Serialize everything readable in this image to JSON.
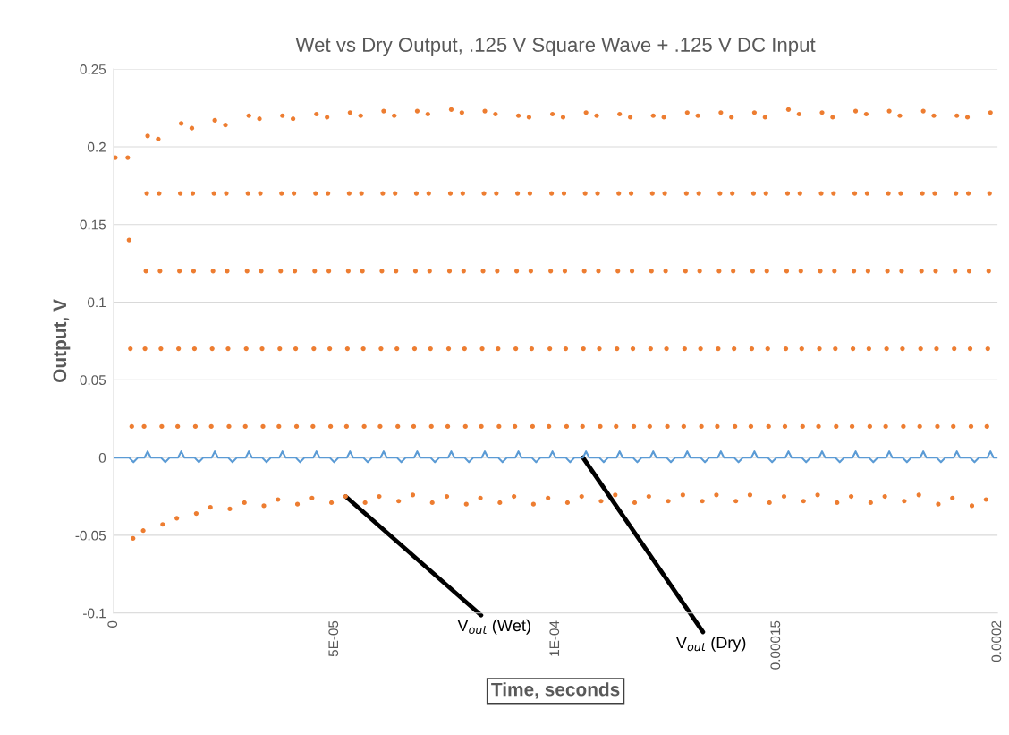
{
  "chart_data": {
    "type": "scatter",
    "title": "Wet vs Dry Output, .125 V Square Wave + .125 V DC Input",
    "xlabel": "Time, seconds",
    "ylabel": "Output, V",
    "xlim": [
      0,
      0.0002
    ],
    "ylim": [
      -0.1,
      0.25
    ],
    "xticks": [
      0,
      {
        "value": 5e-05,
        "label": "5E-05"
      },
      {
        "value": 0.0001,
        "label": "1E-04"
      },
      0.00015,
      0.0002
    ],
    "yticks": [
      -0.1,
      -0.05,
      0,
      0.05,
      0.1,
      0.15,
      0.2,
      0.25
    ],
    "grid": "y",
    "legend": false,
    "series": [
      {
        "marker": "circle",
        "color": "#ed7d31",
        "x": [
          4e-07,
          3.2e-06,
          3.5e-06,
          3.8e-06,
          4.1e-06,
          4.4e-06,
          6.7e-06,
          6.9e-06,
          7.1e-06,
          7.3e-06,
          7.5e-06,
          7.7e-06,
          1.01e-05,
          1.03e-05,
          1.05e-05,
          1.07e-05,
          1.09e-05,
          1.11e-05,
          1.43e-05,
          1.45e-05,
          1.47e-05,
          1.49e-05,
          1.51e-05,
          1.53e-05,
          1.77e-05,
          1.79e-05,
          1.81e-05,
          1.83e-05,
          1.85e-05,
          1.87e-05,
          2.19e-05,
          2.21e-05,
          2.23e-05,
          2.25e-05,
          2.27e-05,
          2.29e-05,
          2.53e-05,
          2.55e-05,
          2.57e-05,
          2.59e-05,
          2.61e-05,
          2.63e-05,
          2.96e-05,
          2.98e-05,
          3e-05,
          3.02e-05,
          3.04e-05,
          3.06e-05,
          3.3e-05,
          3.32e-05,
          3.34e-05,
          3.36e-05,
          3.38e-05,
          3.4e-05,
          3.72e-05,
          3.74e-05,
          3.76e-05,
          3.78e-05,
          3.8e-05,
          3.82e-05,
          4.06e-05,
          4.08e-05,
          4.1e-05,
          4.12e-05,
          4.14e-05,
          4.16e-05,
          4.49e-05,
          4.51e-05,
          4.53e-05,
          4.55e-05,
          4.57e-05,
          4.59e-05,
          4.83e-05,
          4.85e-05,
          4.87e-05,
          4.89e-05,
          4.91e-05,
          4.93e-05,
          5.25e-05,
          5.27e-05,
          5.29e-05,
          5.31e-05,
          5.33e-05,
          5.35e-05,
          5.59e-05,
          5.61e-05,
          5.63e-05,
          5.65e-05,
          5.67e-05,
          5.69e-05,
          6.01e-05,
          6.03e-05,
          6.05e-05,
          6.07e-05,
          6.09e-05,
          6.11e-05,
          6.35e-05,
          6.37e-05,
          6.39e-05,
          6.41e-05,
          6.43e-05,
          6.45e-05,
          6.77e-05,
          6.79e-05,
          6.81e-05,
          6.83e-05,
          6.85e-05,
          6.87e-05,
          7.11e-05,
          7.13e-05,
          7.15e-05,
          7.17e-05,
          7.19e-05,
          7.21e-05,
          7.54e-05,
          7.56e-05,
          7.58e-05,
          7.6e-05,
          7.62e-05,
          7.64e-05,
          7.88e-05,
          7.9e-05,
          7.92e-05,
          7.94e-05,
          7.96e-05,
          7.98e-05,
          8.3e-05,
          8.32e-05,
          8.34e-05,
          8.36e-05,
          8.38e-05,
          8.4e-05,
          8.64e-05,
          8.66e-05,
          8.68e-05,
          8.7e-05,
          8.72e-05,
          8.74e-05,
          9.06e-05,
          9.08e-05,
          9.1e-05,
          9.12e-05,
          9.14e-05,
          9.16e-05,
          9.4e-05,
          9.42e-05,
          9.44e-05,
          9.46e-05,
          9.48e-05,
          9.5e-05,
          9.83e-05,
          9.85e-05,
          9.87e-05,
          9.89e-05,
          9.91e-05,
          9.93e-05,
          0.0001017,
          0.0001019,
          0.0001021,
          0.0001023,
          0.0001025,
          0.0001027,
          0.0001059,
          0.0001061,
          0.0001063,
          0.0001065,
          0.0001067,
          0.0001069,
          0.0001093,
          0.0001095,
          0.0001097,
          0.0001099,
          0.0001101,
          0.0001103,
          0.0001135,
          0.0001137,
          0.0001139,
          0.0001141,
          0.0001143,
          0.0001145,
          0.0001169,
          0.0001171,
          0.0001173,
          0.0001175,
          0.0001177,
          0.0001179,
          0.0001211,
          0.0001213,
          0.0001215,
          0.0001217,
          0.0001219,
          0.0001221,
          0.0001245,
          0.0001247,
          0.0001249,
          0.0001251,
          0.0001253,
          0.0001255,
          0.0001288,
          0.000129,
          0.0001292,
          0.0001294,
          0.0001296,
          0.0001298,
          0.0001322,
          0.0001324,
          0.0001326,
          0.0001328,
          0.000133,
          0.0001332,
          0.0001364,
          0.0001366,
          0.0001368,
          0.000137,
          0.0001372,
          0.0001374,
          0.0001398,
          0.00014,
          0.0001402,
          0.0001404,
          0.0001406,
          0.0001408,
          0.000144,
          0.0001442,
          0.0001444,
          0.0001446,
          0.0001448,
          0.000145,
          0.0001474,
          0.0001476,
          0.0001478,
          0.000148,
          0.0001482,
          0.0001484,
          0.0001517,
          0.0001519,
          0.0001521,
          0.0001523,
          0.0001525,
          0.0001527,
          0.0001551,
          0.0001553,
          0.0001555,
          0.0001557,
          0.0001559,
          0.0001561,
          0.0001593,
          0.0001595,
          0.0001597,
          0.0001599,
          0.0001601,
          0.0001603,
          0.0001627,
          0.0001629,
          0.0001631,
          0.0001633,
          0.0001635,
          0.0001637,
          0.0001669,
          0.0001671,
          0.0001673,
          0.0001675,
          0.0001677,
          0.0001679,
          0.0001703,
          0.0001705,
          0.0001707,
          0.0001709,
          0.0001711,
          0.0001713,
          0.0001745,
          0.0001747,
          0.0001749,
          0.0001751,
          0.0001753,
          0.0001755,
          0.0001779,
          0.0001781,
          0.0001783,
          0.0001785,
          0.0001787,
          0.0001789,
          0.0001822,
          0.0001824,
          0.0001826,
          0.0001828,
          0.000183,
          0.0001832,
          0.0001856,
          0.0001858,
          0.000186,
          0.0001862,
          0.0001864,
          0.0001866,
          0.0001898,
          0.00019,
          0.0001902,
          0.0001904,
          0.0001906,
          0.0001908,
          0.0001932,
          0.0001934,
          0.0001936,
          0.0001938,
          0.000194,
          0.0001942,
          0.0001974,
          0.0001976,
          0.0001978,
          0.000198,
          0.0001982,
          0.0001984
        ],
        "values": [
          0.193,
          0.193,
          0.14,
          0.07,
          0.02,
          -0.052,
          -0.047,
          0.02,
          0.07,
          0.12,
          0.17,
          0.207,
          0.205,
          0.17,
          0.12,
          0.07,
          0.02,
          -0.043,
          -0.039,
          0.02,
          0.07,
          0.12,
          0.17,
          0.215,
          0.212,
          0.17,
          0.12,
          0.07,
          0.02,
          -0.036,
          -0.032,
          0.02,
          0.07,
          0.12,
          0.17,
          0.217,
          0.214,
          0.17,
          0.12,
          0.07,
          0.02,
          -0.033,
          -0.029,
          0.02,
          0.07,
          0.12,
          0.17,
          0.22,
          0.218,
          0.17,
          0.12,
          0.07,
          0.02,
          -0.031,
          -0.027,
          0.02,
          0.07,
          0.12,
          0.17,
          0.22,
          0.218,
          0.17,
          0.12,
          0.07,
          0.02,
          -0.03,
          -0.026,
          0.02,
          0.07,
          0.12,
          0.17,
          0.221,
          0.219,
          0.17,
          0.12,
          0.07,
          0.02,
          -0.029,
          -0.025,
          0.02,
          0.07,
          0.12,
          0.17,
          0.222,
          0.22,
          0.17,
          0.12,
          0.07,
          0.02,
          -0.029,
          -0.025,
          0.02,
          0.07,
          0.12,
          0.17,
          0.223,
          0.22,
          0.17,
          0.12,
          0.07,
          0.02,
          -0.028,
          -0.024,
          0.02,
          0.07,
          0.12,
          0.17,
          0.223,
          0.221,
          0.17,
          0.12,
          0.07,
          0.02,
          -0.029,
          -0.025,
          0.02,
          0.07,
          0.12,
          0.17,
          0.224,
          0.222,
          0.17,
          0.12,
          0.07,
          0.02,
          -0.03,
          -0.026,
          0.02,
          0.07,
          0.12,
          0.17,
          0.223,
          0.221,
          0.17,
          0.12,
          0.07,
          0.02,
          -0.029,
          -0.025,
          0.02,
          0.07,
          0.12,
          0.17,
          0.22,
          0.219,
          0.17,
          0.12,
          0.07,
          0.02,
          -0.03,
          -0.026,
          0.02,
          0.07,
          0.12,
          0.17,
          0.221,
          0.219,
          0.17,
          0.12,
          0.07,
          0.02,
          -0.029,
          -0.025,
          0.02,
          0.07,
          0.12,
          0.17,
          0.222,
          0.22,
          0.17,
          0.12,
          0.07,
          0.02,
          -0.028,
          -0.024,
          0.02,
          0.07,
          0.12,
          0.17,
          0.221,
          0.219,
          0.17,
          0.12,
          0.07,
          0.02,
          -0.029,
          -0.025,
          0.02,
          0.07,
          0.12,
          0.17,
          0.22,
          0.219,
          0.17,
          0.12,
          0.07,
          0.02,
          -0.028,
          -0.024,
          0.02,
          0.07,
          0.12,
          0.17,
          0.222,
          0.22,
          0.17,
          0.12,
          0.07,
          0.02,
          -0.028,
          -0.024,
          0.02,
          0.07,
          0.12,
          0.17,
          0.222,
          0.219,
          0.17,
          0.12,
          0.07,
          0.02,
          -0.028,
          -0.024,
          0.02,
          0.07,
          0.12,
          0.17,
          0.222,
          0.219,
          0.17,
          0.12,
          0.07,
          0.02,
          -0.029,
          -0.025,
          0.02,
          0.07,
          0.12,
          0.17,
          0.224,
          0.221,
          0.17,
          0.12,
          0.07,
          0.02,
          -0.028,
          -0.024,
          0.02,
          0.07,
          0.12,
          0.17,
          0.222,
          0.219,
          0.17,
          0.12,
          0.07,
          0.02,
          -0.029,
          -0.025,
          0.02,
          0.07,
          0.12,
          0.17,
          0.223,
          0.221,
          0.17,
          0.12,
          0.07,
          0.02,
          -0.029,
          -0.025,
          0.02,
          0.07,
          0.12,
          0.17,
          0.223,
          0.22,
          0.17,
          0.12,
          0.07,
          0.02,
          -0.028,
          -0.024,
          0.02,
          0.07,
          0.12,
          0.17,
          0.223,
          0.22,
          0.17,
          0.12,
          0.07,
          0.02,
          -0.03,
          -0.026,
          0.02,
          0.07,
          0.12,
          0.17,
          0.22,
          0.219,
          0.17,
          0.12,
          0.07,
          0.02,
          -0.031,
          -0.027,
          0.02,
          0.07,
          0.12,
          0.17,
          0.222
        ]
      },
      {
        "type": "line",
        "marker": "none",
        "line_style": "solid",
        "color": "#5b9bd5",
        "x": [
          0,
          3.5e-06,
          4.5e-06,
          5.5e-06,
          7e-06,
          7.7e-06,
          8.4e-06,
          1.07e-05,
          1.17e-05,
          1.27e-05,
          1.46e-05,
          1.53e-05,
          1.6e-05,
          1.83e-05,
          1.93e-05,
          2.03e-05,
          2.22e-05,
          2.29e-05,
          2.36e-05,
          2.59e-05,
          2.69e-05,
          2.79e-05,
          2.99e-05,
          3.06e-05,
          3.13e-05,
          3.36e-05,
          3.46e-05,
          3.56e-05,
          3.75e-05,
          3.82e-05,
          3.89e-05,
          4.12e-05,
          4.22e-05,
          4.32e-05,
          4.52e-05,
          4.59e-05,
          4.66e-05,
          4.89e-05,
          4.99e-05,
          5.09e-05,
          5.28e-05,
          5.35e-05,
          5.42e-05,
          5.65e-05,
          5.75e-05,
          5.85e-05,
          6.04e-05,
          6.11e-05,
          6.18e-05,
          6.41e-05,
          6.51e-05,
          6.61e-05,
          6.8e-05,
          6.87e-05,
          6.94e-05,
          7.17e-05,
          7.27e-05,
          7.37e-05,
          7.57e-05,
          7.64e-05,
          7.71e-05,
          7.94e-05,
          8.04e-05,
          8.14e-05,
          8.33e-05,
          8.4e-05,
          8.47e-05,
          8.7e-05,
          8.8e-05,
          8.9e-05,
          9.09e-05,
          9.16e-05,
          9.23e-05,
          9.46e-05,
          9.56e-05,
          9.66e-05,
          9.86e-05,
          9.93e-05,
          0.0001,
          0.0001023,
          0.0001033,
          0.0001043,
          0.0001062,
          0.0001069,
          0.0001076,
          0.0001099,
          0.0001109,
          0.0001119,
          0.0001138,
          0.0001145,
          0.0001152,
          0.0001175,
          0.0001185,
          0.0001195,
          0.0001214,
          0.0001221,
          0.0001228,
          0.0001251,
          0.0001261,
          0.0001271,
          0.0001291,
          0.0001298,
          0.0001305,
          0.0001328,
          0.0001338,
          0.0001348,
          0.0001367,
          0.0001374,
          0.0001381,
          0.0001404,
          0.0001414,
          0.0001424,
          0.0001443,
          0.000145,
          0.0001457,
          0.000148,
          0.000149,
          0.00015,
          0.000152,
          0.0001527,
          0.0001534,
          0.0001557,
          0.0001567,
          0.0001577,
          0.0001596,
          0.0001603,
          0.000161,
          0.0001633,
          0.0001643,
          0.0001653,
          0.0001672,
          0.0001679,
          0.0001686,
          0.0001709,
          0.0001719,
          0.0001729,
          0.0001748,
          0.0001755,
          0.0001762,
          0.0001785,
          0.0001795,
          0.0001805,
          0.0001825,
          0.0001832,
          0.0001839,
          0.0001862,
          0.0001872,
          0.0001882,
          0.0001901,
          0.0001908,
          0.0001915,
          0.0001938,
          0.0001948,
          0.0001958,
          0.0001977,
          0.0001984,
          0.0001991,
          0.0002
        ],
        "values": [
          0,
          0,
          -0.003,
          0,
          0,
          0.004,
          0,
          0,
          -0.003,
          0,
          0,
          0.004,
          0,
          0,
          -0.003,
          0,
          0,
          0.004,
          0,
          0,
          -0.003,
          0,
          0,
          0.004,
          0,
          0,
          -0.003,
          0,
          0,
          0.004,
          0,
          0,
          -0.003,
          0,
          0,
          0.004,
          0,
          0,
          -0.003,
          0,
          0,
          0.004,
          0,
          0,
          -0.003,
          0,
          0,
          0.004,
          0,
          0,
          -0.003,
          0,
          0,
          0.004,
          0,
          0,
          -0.003,
          0,
          0,
          0.004,
          0,
          0,
          -0.003,
          0,
          0,
          0.004,
          0,
          0,
          -0.003,
          0,
          0,
          0.004,
          0,
          0,
          -0.003,
          0,
          0,
          0.004,
          0,
          0,
          -0.003,
          0,
          0,
          0.004,
          0,
          0,
          -0.003,
          0,
          0,
          0.004,
          0,
          0,
          -0.003,
          0,
          0,
          0.004,
          0,
          0,
          -0.003,
          0,
          0,
          0.004,
          0,
          0,
          -0.003,
          0,
          0,
          0.004,
          0,
          0,
          -0.003,
          0,
          0,
          0.004,
          0,
          0,
          -0.003,
          0,
          0,
          0.004,
          0,
          0,
          -0.003,
          0,
          0,
          0.004,
          0,
          0,
          -0.003,
          0,
          0,
          0.004,
          0,
          0,
          -0.003,
          0,
          0,
          0.004,
          0,
          0,
          -0.003,
          0,
          0,
          0.004,
          0,
          0,
          -0.003,
          0,
          0,
          0.004,
          0,
          0,
          -0.003,
          0,
          0,
          0.004,
          0,
          0
        ]
      }
    ],
    "annotations": [
      {
        "text": "V$_{out}$ (Wet)",
        "x": 5.25e-05,
        "y": -0.025
      },
      {
        "text": "V$_{out}$ (Dry)",
        "x": 0.0001062,
        "y": 0
      }
    ]
  }
}
